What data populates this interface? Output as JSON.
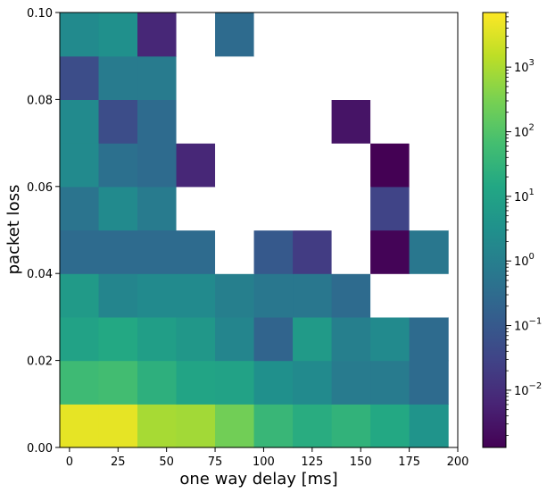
{
  "chart_data": {
    "type": "heatmap",
    "title": "",
    "xlabel": "one way delay [ms]",
    "ylabel": "packet loss",
    "xlim": [
      -5,
      200
    ],
    "ylim": [
      0,
      0.1
    ],
    "x_ticks": [
      0,
      25,
      50,
      75,
      100,
      125,
      150,
      175,
      200
    ],
    "y_ticks": [
      0.0,
      0.02,
      0.04,
      0.06,
      0.08,
      0.1
    ],
    "x_tick_labels": [
      "0",
      "25",
      "50",
      "75",
      "100",
      "125",
      "150",
      "175",
      "200"
    ],
    "y_tick_labels": [
      "0.00",
      "0.02",
      "0.04",
      "0.06",
      "0.08",
      "0.10"
    ],
    "x_bin_edges": [
      -5,
      15,
      35,
      55,
      75,
      95,
      115,
      135,
      155,
      175,
      195
    ],
    "y_bin_edges": [
      0.0,
      0.01,
      0.02,
      0.03,
      0.04,
      0.05,
      0.06,
      0.07,
      0.08,
      0.09,
      0.1
    ],
    "colorscale": "viridis",
    "color_scale_type": "log",
    "color_range": [
      0.0013,
      7000
    ],
    "colorbar_ticks": [
      {
        "exp": -2,
        "base": "10",
        "sup": "−2"
      },
      {
        "exp": -1,
        "base": "10",
        "sup": "−1"
      },
      {
        "exp": 0,
        "base": "10",
        "sup": "0"
      },
      {
        "exp": 1,
        "base": "10",
        "sup": "1"
      },
      {
        "exp": 2,
        "base": "10",
        "sup": "2"
      },
      {
        "exp": 3,
        "base": "10",
        "sup": "3"
      }
    ],
    "missing_color": "#ffffff",
    "values": [
      [
        4000,
        4000,
        900,
        800,
        250,
        40,
        20,
        30,
        15,
        4
      ],
      [
        50,
        60,
        25,
        12,
        10,
        3,
        2,
        0.8,
        0.8,
        0.3
      ],
      [
        10,
        15,
        8,
        5,
        1.5,
        0.2,
        6,
        1,
        2,
        0.3
      ],
      [
        6,
        1.5,
        2,
        2,
        1,
        0.6,
        0.6,
        0.3,
        null,
        null
      ],
      [
        0.3,
        0.3,
        0.3,
        0.3,
        null,
        0.1,
        0.02,
        null,
        0.0015,
        0.6
      ],
      [
        0.5,
        2,
        0.8,
        null,
        null,
        null,
        null,
        null,
        0.03,
        null
      ],
      [
        2,
        0.4,
        0.3,
        0.007,
        null,
        null,
        null,
        null,
        0.0013,
        null
      ],
      [
        2,
        0.05,
        0.3,
        null,
        null,
        null,
        null,
        0.003,
        null,
        null
      ],
      [
        0.05,
        0.8,
        0.8,
        null,
        null,
        null,
        null,
        null,
        null,
        null
      ],
      [
        2,
        3,
        0.007,
        null,
        0.3,
        null,
        null,
        null,
        null,
        null
      ]
    ]
  }
}
